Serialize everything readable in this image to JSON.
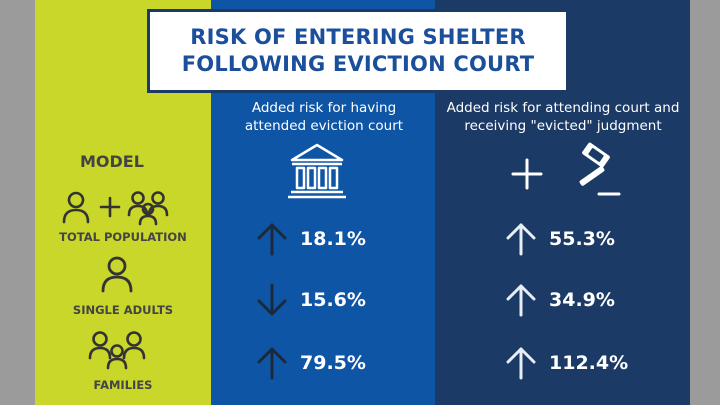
{
  "colors": {
    "model_bg": "#c9d62a",
    "court_bg": "#0f55a6",
    "judgment_bg": "#1b3a66",
    "title_text": "#1b4f9c",
    "label_text": "#444444"
  },
  "title": {
    "line1": "RISK OF ENTERING SHELTER",
    "line2": "FOLLOWING EVICTION COURT"
  },
  "columns": {
    "court": {
      "line1": "Added risk for having",
      "line2": "attended eviction court",
      "icon": "courthouse-icon"
    },
    "judgment": {
      "line1": "Added risk for attending court and",
      "line2": "receiving \"evicted\" judgment",
      "icon": "plus-gavel-icon"
    }
  },
  "model": {
    "heading": "MODEL",
    "rows": [
      {
        "label": "TOTAL POPULATION",
        "icon": "individual-plus-family-icon"
      },
      {
        "label": "SINGLE ADULTS",
        "icon": "single-adult-icon"
      },
      {
        "label": "FAMILIES",
        "icon": "family-icon"
      }
    ]
  },
  "stats": {
    "court": [
      {
        "direction": "up",
        "value": "18.1%"
      },
      {
        "direction": "down",
        "value": "15.6%"
      },
      {
        "direction": "up",
        "value": "79.5%"
      }
    ],
    "judgment": [
      {
        "direction": "up",
        "value": "55.3%"
      },
      {
        "direction": "up",
        "value": "34.9%"
      },
      {
        "direction": "up",
        "value": "112.4%"
      }
    ]
  }
}
